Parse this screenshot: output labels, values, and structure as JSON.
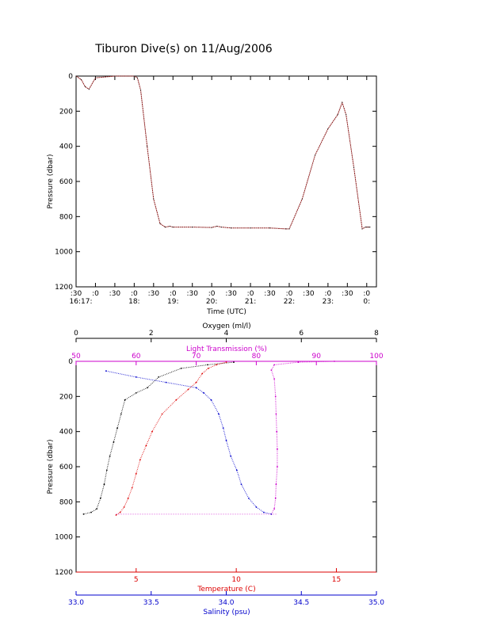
{
  "title": "Tiburon Dive(s) on 11/Aug/2006",
  "top_chart": {
    "xlabel": "Time (UTC)",
    "ylabel": "Pressure (dbar)",
    "tick_minutes": [
      ":30",
      ":0",
      ":30",
      ":0",
      ":30",
      ":0",
      ":30",
      ":0",
      ":30",
      ":0",
      ":30",
      ":0",
      ":30",
      ":0",
      ":30",
      ":0"
    ],
    "tick_hours": [
      "16:17:",
      "18:",
      "19:",
      "20:",
      "21:",
      "22:",
      "23:",
      "0:"
    ]
  },
  "bottom_chart": {
    "ylabel": "Pressure (dbar)",
    "axes": {
      "oxygen": {
        "label": "Oxygen (ml/l)",
        "color": "#000000"
      },
      "transmission": {
        "label": "Light Transmission (%)",
        "color": "#cc00cc"
      },
      "temperature": {
        "label": "Temperature (C)",
        "color": "#dd0000"
      },
      "salinity": {
        "label": "Salinity (psu)",
        "color": "#0000cc"
      }
    }
  },
  "chart_data": [
    {
      "type": "line",
      "title": "Tiburon Dive(s) on 11/Aug/2006",
      "xlabel": "Time (UTC)",
      "ylabel": "Pressure (dbar)",
      "x_hour_ticks": [
        "16:17:",
        "18:",
        "19:",
        "20:",
        "21:",
        "22:",
        "23:",
        "0:"
      ],
      "ylim": [
        1200,
        0
      ],
      "y_ticks": [
        0,
        200,
        400,
        600,
        800,
        1000,
        1200
      ],
      "series": [
        {
          "color": "#8b1a1a",
          "x": [
            "16:30",
            "16:38",
            "16:44",
            "16:50",
            "17:00",
            "17:30",
            "18:00",
            "18:05",
            "18:10",
            "18:20",
            "18:30",
            "18:40",
            "18:48",
            "18:55",
            "19:00",
            "19:30",
            "20:00",
            "20:08",
            "20:15",
            "20:30",
            "21:00",
            "21:30",
            "21:55",
            "22:00",
            "22:20",
            "22:40",
            "23:00",
            "23:15",
            "23:22",
            "23:28",
            "23:40",
            "23:53",
            "23:58",
            "0:00",
            "0:03",
            "0:05"
          ],
          "values": [
            0,
            20,
            60,
            75,
            10,
            0,
            0,
            10,
            80,
            400,
            700,
            840,
            860,
            855,
            860,
            860,
            862,
            855,
            860,
            865,
            865,
            865,
            870,
            870,
            700,
            450,
            300,
            220,
            150,
            220,
            520,
            870,
            860,
            860,
            860,
            860
          ]
        }
      ]
    },
    {
      "type": "scatter",
      "ylabel": "Pressure (dbar)",
      "ylim": [
        1200,
        0
      ],
      "y_ticks": [
        0,
        200,
        400,
        600,
        800,
        1000,
        1200
      ],
      "series": [
        {
          "color": "#000000",
          "x_axis": "Oxygen (ml/l)",
          "xlim": [
            0,
            8
          ],
          "x_ticks": [
            0,
            2,
            4,
            6,
            8
          ],
          "points": [
            [
              4.2,
              5
            ],
            [
              3.5,
              20
            ],
            [
              2.8,
              40
            ],
            [
              2.2,
              90
            ],
            [
              1.9,
              150
            ],
            [
              1.6,
              180
            ],
            [
              1.3,
              220
            ],
            [
              1.2,
              300
            ],
            [
              1.1,
              380
            ],
            [
              1.0,
              460
            ],
            [
              0.9,
              540
            ],
            [
              0.82,
              620
            ],
            [
              0.75,
              700
            ],
            [
              0.65,
              780
            ],
            [
              0.55,
              840
            ],
            [
              0.4,
              860
            ],
            [
              0.2,
              870
            ]
          ]
        },
        {
          "color": "#cc00cc",
          "x_axis": "Light Transmission (%)",
          "xlim": [
            50,
            100
          ],
          "x_ticks": [
            50,
            60,
            70,
            80,
            90,
            100
          ],
          "points": [
            [
              93,
              0
            ],
            [
              87,
              5
            ],
            [
              83,
              20
            ],
            [
              82.5,
              50
            ],
            [
              83,
              100
            ],
            [
              83.2,
              200
            ],
            [
              83.3,
              300
            ],
            [
              83.4,
              400
            ],
            [
              83.5,
              500
            ],
            [
              83.5,
              600
            ],
            [
              83.3,
              700
            ],
            [
              83.2,
              780
            ],
            [
              83,
              840
            ],
            [
              82.5,
              870
            ]
          ]
        },
        {
          "color": "#dd0000",
          "x_axis": "Temperature (C)",
          "xlim": [
            2,
            17
          ],
          "x_ticks": [
            5,
            10,
            15
          ],
          "points": [
            [
              9.5,
              5
            ],
            [
              9.0,
              20
            ],
            [
              8.6,
              40
            ],
            [
              8.3,
              70
            ],
            [
              8.0,
              120
            ],
            [
              7.6,
              160
            ],
            [
              7.0,
              220
            ],
            [
              6.3,
              300
            ],
            [
              5.8,
              400
            ],
            [
              5.5,
              480
            ],
            [
              5.2,
              560
            ],
            [
              5.0,
              640
            ],
            [
              4.8,
              720
            ],
            [
              4.6,
              780
            ],
            [
              4.4,
              830
            ],
            [
              4.2,
              860
            ],
            [
              4.0,
              875
            ]
          ]
        },
        {
          "color": "#0000cc",
          "x_axis": "Salinity (psu)",
          "xlim": [
            33.0,
            35.0
          ],
          "x_ticks": [
            33.0,
            33.5,
            34.0,
            34.5,
            35.0
          ],
          "points": [
            [
              33.2,
              55
            ],
            [
              33.4,
              90
            ],
            [
              33.6,
              120
            ],
            [
              33.8,
              150
            ],
            [
              33.85,
              180
            ],
            [
              33.9,
              220
            ],
            [
              33.95,
              300
            ],
            [
              33.98,
              380
            ],
            [
              34.0,
              450
            ],
            [
              34.03,
              540
            ],
            [
              34.07,
              620
            ],
            [
              34.1,
              700
            ],
            [
              34.15,
              780
            ],
            [
              34.2,
              830
            ],
            [
              34.25,
              860
            ],
            [
              34.3,
              870
            ]
          ]
        }
      ]
    }
  ]
}
